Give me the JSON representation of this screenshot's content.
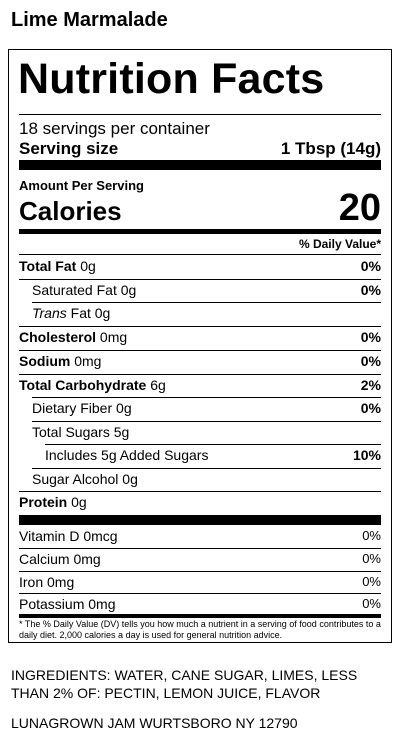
{
  "product_name": "Lime Marmalade",
  "label": {
    "title": "Nutrition Facts",
    "servings_per_container": "18 servings per container",
    "serving_size_label": "Serving size",
    "serving_size_value": "1 Tbsp (14g)",
    "amount_per_serving": "Amount Per Serving",
    "calories_label": "Calories",
    "calories_value": "20",
    "daily_value_header": "% Daily Value*",
    "nutrients": [
      {
        "name": "Total Fat",
        "amount": "0g",
        "dv": "0%"
      },
      {
        "name": "Saturated Fat",
        "amount": "0g",
        "dv": "0%"
      },
      {
        "name": "Trans",
        "name_suffix": "Fat",
        "amount": "0g",
        "dv": ""
      },
      {
        "name": "Cholesterol",
        "amount": "0mg",
        "dv": "0%"
      },
      {
        "name": "Sodium",
        "amount": "0mg",
        "dv": "0%"
      },
      {
        "name": "Total Carbohydrate",
        "amount": "6g",
        "dv": "2%"
      },
      {
        "name": "Dietary Fiber",
        "amount": "0g",
        "dv": "0%"
      },
      {
        "name": "Total Sugars",
        "amount": "5g",
        "dv": ""
      },
      {
        "name": "Includes 5g Added Sugars",
        "amount": "",
        "dv": "10%"
      },
      {
        "name": "Sugar Alcohol",
        "amount": "0g",
        "dv": ""
      },
      {
        "name": "Protein",
        "amount": "0g",
        "dv": ""
      }
    ],
    "vitamins": [
      {
        "name": "Vitamin D",
        "amount": "0mcg",
        "dv": "0%"
      },
      {
        "name": "Calcium",
        "amount": "0mg",
        "dv": "0%"
      },
      {
        "name": "Iron",
        "amount": "0mg",
        "dv": "0%"
      },
      {
        "name": "Potassium",
        "amount": "0mg",
        "dv": "0%"
      }
    ],
    "footnote": "* The % Daily Value (DV) tells you how much a nutrient in a serving of food contributes to a daily diet. 2,000 calories a day is used for general nutrition advice."
  },
  "ingredients": "INGREDIENTS: WATER, CANE SUGAR, LIMES, LESS THAN 2% OF: PECTIN, LEMON JUICE, FLAVOR",
  "manufacturer": "LUNAGROWN JAM WURTSBORO NY 12790"
}
